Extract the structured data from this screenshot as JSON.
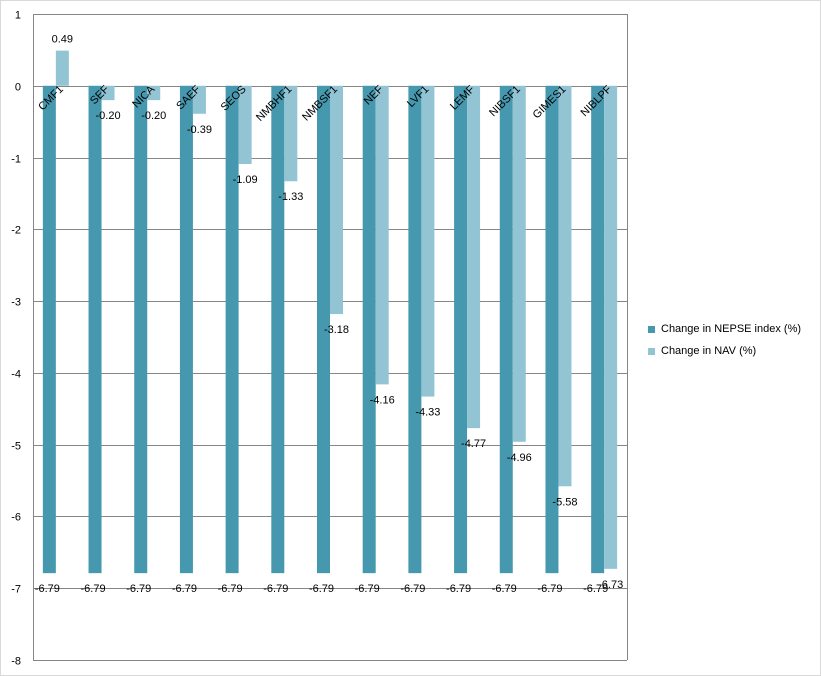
{
  "chart_data": {
    "type": "bar",
    "categories": [
      "CMF1",
      "SEF",
      "NICA",
      "SAEF",
      "SEOS",
      "NMBHF1",
      "NMBSF1",
      "NEF",
      "LVF1",
      "LEMF",
      "NIBSF1",
      "GIMES1",
      "NIBLPF"
    ],
    "series": [
      {
        "name": "Change in NEPSE index (%)",
        "color": "#4598AE",
        "values": [
          -6.79,
          -6.79,
          -6.79,
          -6.79,
          -6.79,
          -6.79,
          -6.79,
          -6.79,
          -6.79,
          -6.79,
          -6.79,
          -6.79,
          -6.79
        ],
        "labels": [
          "-6.79",
          "-6.79",
          "-6.79",
          "-6.79",
          "-6.79",
          "-6.79",
          "-6.79",
          "-6.79",
          "-6.79",
          "-6.79",
          "-6.79",
          "-6.79",
          "-6.79"
        ]
      },
      {
        "name": "Change in NAV (%)",
        "color": "#93C4D4",
        "values": [
          0.49,
          -0.2,
          -0.2,
          -0.39,
          -1.09,
          -1.33,
          -3.18,
          -4.16,
          -4.33,
          -4.77,
          -4.96,
          -5.58,
          -6.73
        ],
        "labels": [
          "0.49",
          "-0.20",
          "-0.20",
          "-0.39",
          "-1.09",
          "-1.33",
          "-3.18",
          "-4.16",
          "-4.33",
          "-4.77",
          "-4.96",
          "-5.58",
          "-6.73"
        ]
      }
    ],
    "ylim": [
      -8,
      1
    ],
    "yticks": [
      "1",
      "0",
      "-1",
      "-2",
      "-3",
      "-4",
      "-5",
      "-6",
      "-7",
      "-8"
    ],
    "title": "",
    "xlabel": "",
    "ylabel": "",
    "grid": true,
    "legend": "right"
  }
}
